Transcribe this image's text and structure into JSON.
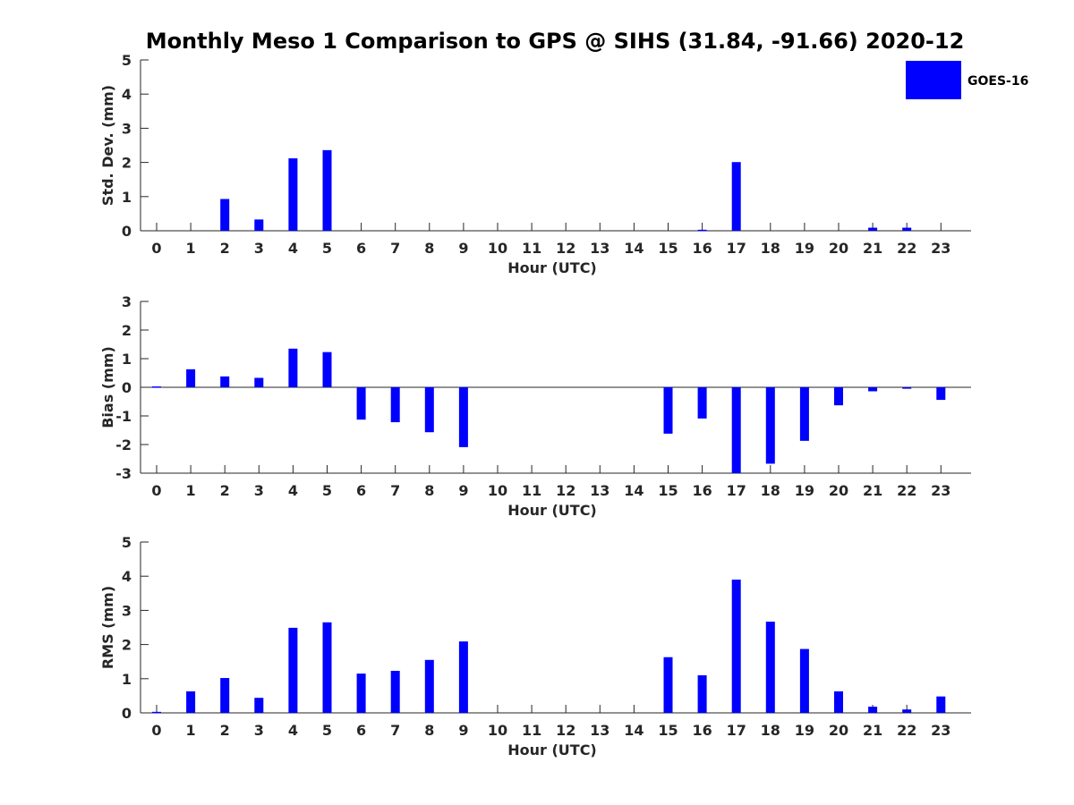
{
  "figure": {
    "title": "Monthly Meso 1 Comparison to GPS @ SIHS (31.84, -91.66) 2020-12"
  },
  "legend": {
    "label": "GOES-16",
    "color": "#0000ff",
    "placement": "top-right"
  },
  "chart_data": [
    {
      "type": "bar",
      "xlabel": "Hour (UTC)",
      "ylabel": "Std. Dev. (mm)",
      "ylim": [
        0,
        5
      ],
      "yticks": [
        0,
        1,
        2,
        3,
        4,
        5
      ],
      "categories": [
        0,
        1,
        2,
        3,
        4,
        5,
        6,
        7,
        8,
        9,
        10,
        11,
        12,
        13,
        14,
        15,
        16,
        17,
        18,
        19,
        20,
        21,
        22,
        23
      ],
      "series": [
        {
          "name": "GOES-16",
          "values": [
            0,
            0,
            0.93,
            0.33,
            2.12,
            2.36,
            0,
            0,
            0,
            0,
            0,
            0,
            0,
            0,
            0,
            0,
            0.03,
            2.01,
            0,
            0,
            0,
            0.09,
            0.09,
            0
          ]
        }
      ]
    },
    {
      "type": "bar",
      "xlabel": "Hour (UTC)",
      "ylabel": "Bias (mm)",
      "ylim": [
        -3,
        3
      ],
      "yticks": [
        -3,
        -2,
        -1,
        0,
        1,
        2,
        3
      ],
      "categories": [
        0,
        1,
        2,
        3,
        4,
        5,
        6,
        7,
        8,
        9,
        10,
        11,
        12,
        13,
        14,
        15,
        16,
        17,
        18,
        19,
        20,
        21,
        22,
        23
      ],
      "series": [
        {
          "name": "GOES-16",
          "values": [
            0.03,
            0.63,
            0.38,
            0.33,
            1.35,
            1.23,
            -1.13,
            -1.22,
            -1.57,
            -2.09,
            0,
            0,
            0,
            0,
            0,
            -1.62,
            -1.09,
            -3.0,
            -2.67,
            -1.87,
            -0.63,
            -0.14,
            -0.05,
            -0.44
          ]
        }
      ]
    },
    {
      "type": "bar",
      "xlabel": "Hour (UTC)",
      "ylabel": "RMS (mm)",
      "ylim": [
        0,
        5
      ],
      "yticks": [
        0,
        1,
        2,
        3,
        4,
        5
      ],
      "categories": [
        0,
        1,
        2,
        3,
        4,
        5,
        6,
        7,
        8,
        9,
        10,
        11,
        12,
        13,
        14,
        15,
        16,
        17,
        18,
        19,
        20,
        21,
        22,
        23
      ],
      "series": [
        {
          "name": "GOES-16",
          "values": [
            0.03,
            0.63,
            1.02,
            0.44,
            2.49,
            2.65,
            1.15,
            1.23,
            1.55,
            2.09,
            0,
            0,
            0,
            0,
            0,
            1.63,
            1.1,
            3.9,
            2.67,
            1.87,
            0.63,
            0.18,
            0.1,
            0.48
          ]
        }
      ]
    }
  ]
}
